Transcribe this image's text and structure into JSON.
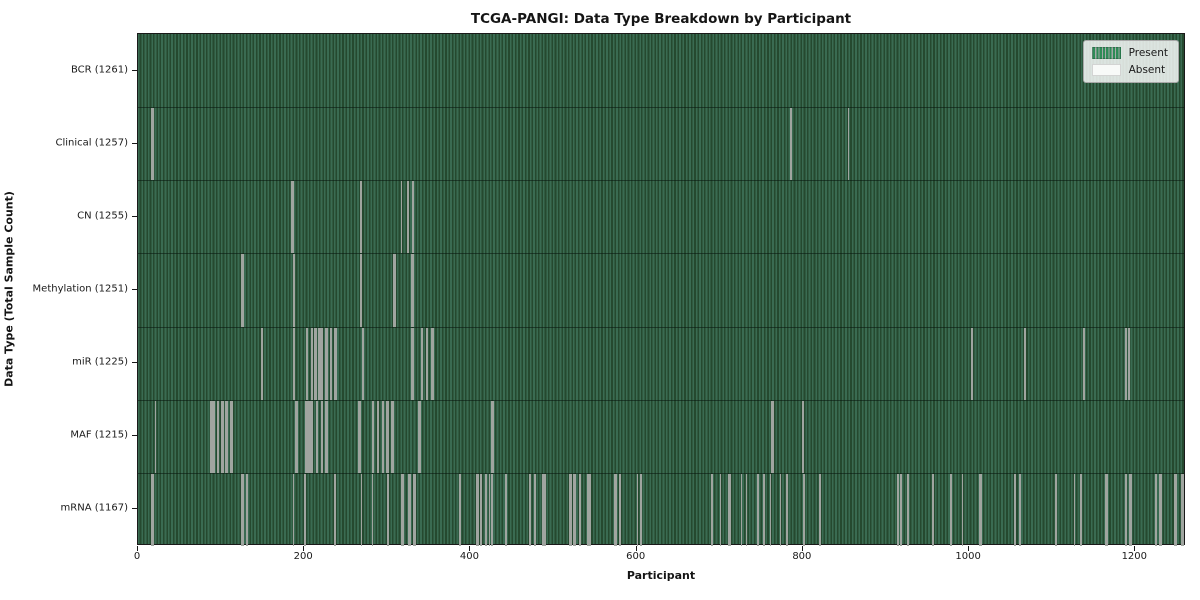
{
  "title": "TCGA-PANGI: Data Type Breakdown by Participant",
  "colors": {
    "present_green": "#2e8b57",
    "stripe_light": "#3a6b52",
    "stripe_dark": "#25492f",
    "absent_line": "#a0a5a0",
    "absent_white": "#f8faf8",
    "axis_text": "#1a1a1a"
  },
  "chart_data": {
    "type": "heatmap",
    "title": "TCGA-PANGI: Data Type Breakdown by Participant",
    "xlabel": "Participant",
    "ylabel": "Data Type (Total Sample Count)",
    "x_ticks": [
      0,
      200,
      400,
      600,
      800,
      1000,
      1200
    ],
    "x_range": [
      0,
      1261
    ],
    "total_participants": 1261,
    "grid": false,
    "legend_position": "upper right",
    "legend": [
      {
        "label": "Present",
        "color": "#2e8b57"
      },
      {
        "label": "Absent",
        "color": "#f8faf8"
      }
    ],
    "rows": [
      {
        "name": "BCR",
        "label": "BCR (1261)",
        "present_count": 1261,
        "absent_participants": []
      },
      {
        "name": "Clinical",
        "label": "Clinical (1257)",
        "present_count": 1257,
        "absent_participants": [
          16,
          17,
          785,
          854
        ]
      },
      {
        "name": "CN",
        "label": "CN (1255)",
        "present_count": 1255,
        "absent_participants": [
          184,
          186,
          267,
          316,
          324,
          330
        ]
      },
      {
        "name": "Methylation",
        "label": "Methylation (1251)",
        "present_count": 1251,
        "absent_participants": [
          124,
          125,
          186,
          187,
          267,
          268,
          307,
          308,
          329,
          330
        ]
      },
      {
        "name": "miR",
        "label": "miR (1225)",
        "present_count": 1225,
        "absent_participants": [
          148,
          187,
          202,
          203,
          208,
          209,
          212,
          213,
          217,
          218,
          220,
          221,
          225,
          226,
          231,
          232,
          236,
          237,
          269,
          270,
          329,
          330,
          340,
          341,
          346,
          347,
          353,
          354,
          1002,
          1003,
          1066,
          1067,
          1137,
          1138,
          1188,
          1191
        ]
      },
      {
        "name": "MAF",
        "label": "MAF (1215)",
        "present_count": 1215,
        "absent_participants": [
          20,
          87,
          88,
          90,
          91,
          95,
          96,
          100,
          101,
          105,
          106,
          111,
          112,
          189,
          190,
          201,
          202,
          205,
          206,
          208,
          209,
          214,
          215,
          220,
          221,
          225,
          226,
          265,
          266,
          281,
          282,
          287,
          288,
          293,
          294,
          299,
          300,
          305,
          306,
          337,
          338,
          425,
          426,
          762,
          763,
          799
        ]
      },
      {
        "name": "mRNA",
        "label": "mRNA (1167)",
        "present_count": 1167,
        "absent_participants": [
          16,
          17,
          124,
          125,
          130,
          186,
          200,
          236,
          268,
          281,
          300,
          317,
          318,
          325,
          326,
          331,
          332,
          386,
          387,
          407,
          408,
          411,
          412,
          417,
          418,
          422,
          425,
          441,
          442,
          470,
          471,
          476,
          477,
          486,
          489,
          519,
          520,
          524,
          525,
          531,
          540,
          542,
          543,
          573,
          574,
          579,
          600,
          604,
          605,
          690,
          700,
          710,
          711,
          725,
          731,
          745,
          752,
          760,
          772,
          780,
          800,
          820,
          913,
          914,
          917,
          925,
          926,
          955,
          956,
          977,
          978,
          991,
          1012,
          1013,
          1054,
          1060,
          1061,
          1103,
          1104,
          1126,
          1133,
          1134,
          1164,
          1165,
          1188,
          1193,
          1194,
          1224,
          1229,
          1230,
          1247,
          1248,
          1255,
          1256
        ]
      }
    ]
  }
}
